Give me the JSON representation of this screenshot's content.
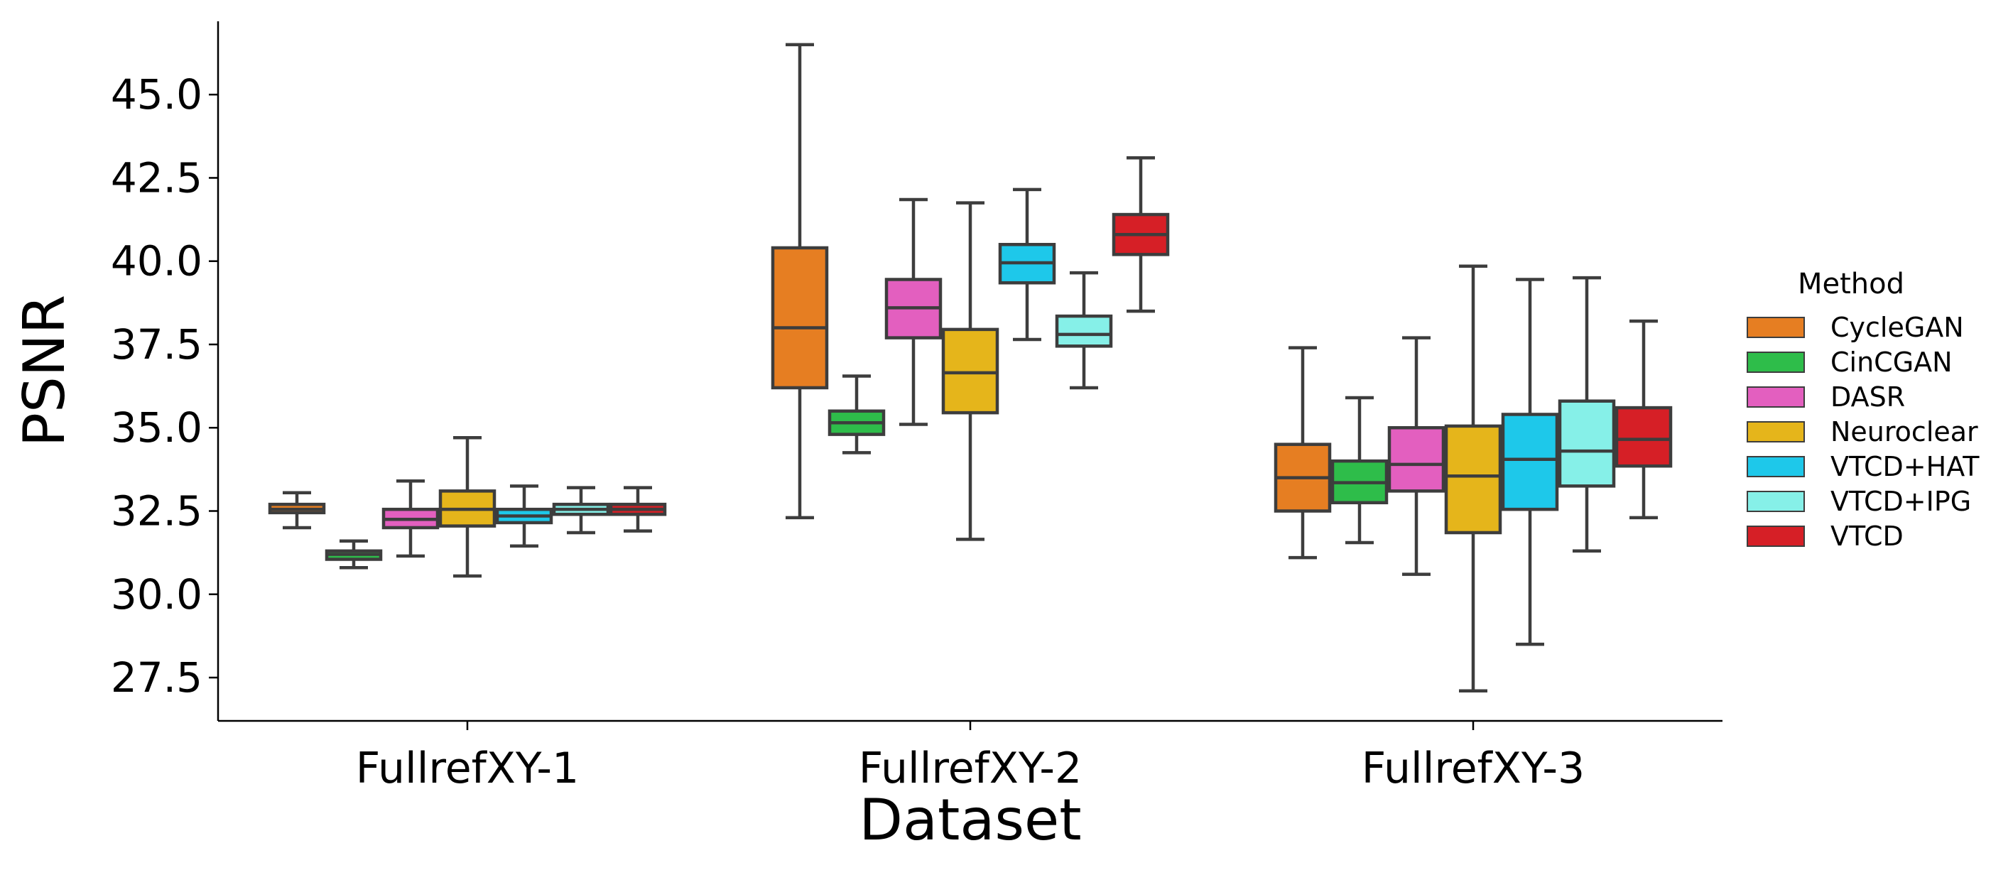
{
  "chart_data": {
    "type": "boxplot",
    "title": "",
    "xlabel": "Dataset",
    "ylabel": "PSNR",
    "ylim": [
      26.2,
      47.2
    ],
    "yticks": [
      27.5,
      30.0,
      32.5,
      35.0,
      37.5,
      40.0,
      42.5,
      45.0
    ],
    "ytick_labels": [
      "27.5",
      "30.0",
      "32.5",
      "35.0",
      "37.5",
      "40.0",
      "42.5",
      "45.0"
    ],
    "categories": [
      "FullrefXY-1",
      "FullrefXY-2",
      "FullrefXY-3"
    ],
    "legend": {
      "title": "Method",
      "placement": "right"
    },
    "series": [
      {
        "name": "CycleGAN",
        "color": "#e67e22",
        "boxes": [
          {
            "whislo": 32.0,
            "q1": 32.45,
            "med": 32.55,
            "q3": 32.7,
            "whishi": 33.05
          },
          {
            "whislo": 32.3,
            "q1": 36.2,
            "med": 38.0,
            "q3": 40.4,
            "whishi": 46.5
          },
          {
            "whislo": 31.1,
            "q1": 32.5,
            "med": 33.5,
            "q3": 34.5,
            "whishi": 37.4
          }
        ]
      },
      {
        "name": "CinCGAN",
        "color": "#2ebd4a",
        "boxes": [
          {
            "whislo": 30.8,
            "q1": 31.05,
            "med": 31.2,
            "q3": 31.3,
            "whishi": 31.6
          },
          {
            "whislo": 34.25,
            "q1": 34.8,
            "med": 35.15,
            "q3": 35.5,
            "whishi": 36.55
          },
          {
            "whislo": 31.55,
            "q1": 32.75,
            "med": 33.35,
            "q3": 34.0,
            "whishi": 35.9
          }
        ]
      },
      {
        "name": "DASR",
        "color": "#e35fbf",
        "boxes": [
          {
            "whislo": 31.15,
            "q1": 32.0,
            "med": 32.25,
            "q3": 32.55,
            "whishi": 33.4
          },
          {
            "whislo": 35.1,
            "q1": 37.7,
            "med": 38.6,
            "q3": 39.45,
            "whishi": 41.85
          },
          {
            "whislo": 30.6,
            "q1": 33.1,
            "med": 33.9,
            "q3": 35.0,
            "whishi": 37.7
          }
        ]
      },
      {
        "name": "Neuroclear",
        "color": "#e5b51b",
        "boxes": [
          {
            "whislo": 30.55,
            "q1": 32.05,
            "med": 32.55,
            "q3": 33.1,
            "whishi": 34.7
          },
          {
            "whislo": 31.65,
            "q1": 35.45,
            "med": 36.65,
            "q3": 37.95,
            "whishi": 41.75
          },
          {
            "whislo": 27.1,
            "q1": 31.85,
            "med": 33.55,
            "q3": 35.05,
            "whishi": 39.85
          }
        ]
      },
      {
        "name": "VTCD+HAT",
        "color": "#1ec8ea",
        "boxes": [
          {
            "whislo": 31.45,
            "q1": 32.15,
            "med": 32.35,
            "q3": 32.55,
            "whishi": 33.25
          },
          {
            "whislo": 37.65,
            "q1": 39.35,
            "med": 39.95,
            "q3": 40.5,
            "whishi": 42.15
          },
          {
            "whislo": 28.5,
            "q1": 32.55,
            "med": 34.05,
            "q3": 35.4,
            "whishi": 39.45
          }
        ]
      },
      {
        "name": "VTCD+IPG",
        "color": "#86f0e8",
        "boxes": [
          {
            "whislo": 31.85,
            "q1": 32.4,
            "med": 32.55,
            "q3": 32.7,
            "whishi": 33.2
          },
          {
            "whislo": 36.2,
            "q1": 37.45,
            "med": 37.8,
            "q3": 38.35,
            "whishi": 39.65
          },
          {
            "whislo": 31.3,
            "q1": 33.25,
            "med": 34.3,
            "q3": 35.8,
            "whishi": 39.5
          }
        ]
      },
      {
        "name": "VTCD",
        "color": "#d61f26",
        "boxes": [
          {
            "whislo": 31.9,
            "q1": 32.4,
            "med": 32.55,
            "q3": 32.7,
            "whishi": 33.2
          },
          {
            "whislo": 38.5,
            "q1": 40.2,
            "med": 40.8,
            "q3": 41.4,
            "whishi": 43.1
          },
          {
            "whislo": 32.3,
            "q1": 33.85,
            "med": 34.65,
            "q3": 35.6,
            "whishi": 38.2
          }
        ]
      }
    ]
  }
}
